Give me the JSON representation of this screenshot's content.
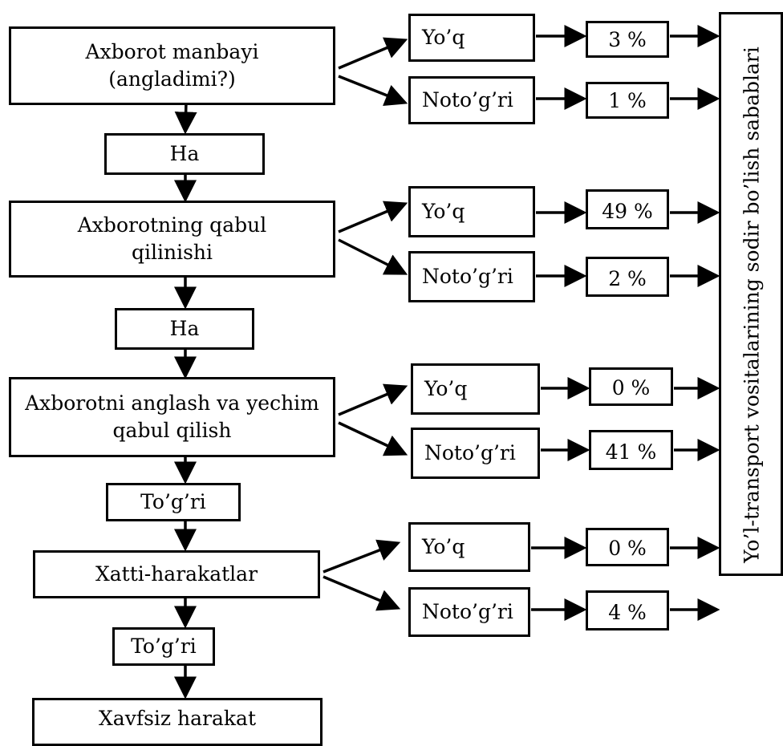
{
  "main_flow": {
    "source": "Axborot manbayi\n(angladimi?)",
    "ha_1": "Ha",
    "reception": "Axborotning qabul\nqilinishi",
    "ha_2": "Ha",
    "understanding": "Axborotni anglash va yechim\nqabul qilish",
    "correct_1": "To’g’ri",
    "actions": "Xatti-harakatlar",
    "correct_2": "To’g’ri",
    "safe": "Xavfsiz harakat"
  },
  "branches": [
    {
      "no": "Yo’q",
      "no_pct": "3 %",
      "wrong": "Noto’g’ri",
      "wrong_pct": "1 %"
    },
    {
      "no": "Yo’q",
      "no_pct": "49 %",
      "wrong": "Noto’g’ri",
      "wrong_pct": "2 %"
    },
    {
      "no": "Yo’q",
      "no_pct": "0 %",
      "wrong": "Noto’g’ri",
      "wrong_pct": "41 %"
    },
    {
      "no": "Yo’q",
      "no_pct": "0 %",
      "wrong": "Noto’g’ri",
      "wrong_pct": "4 %"
    }
  ],
  "side_label": "Yo’l-transport vositalarining sodir bo’lish sabablari"
}
